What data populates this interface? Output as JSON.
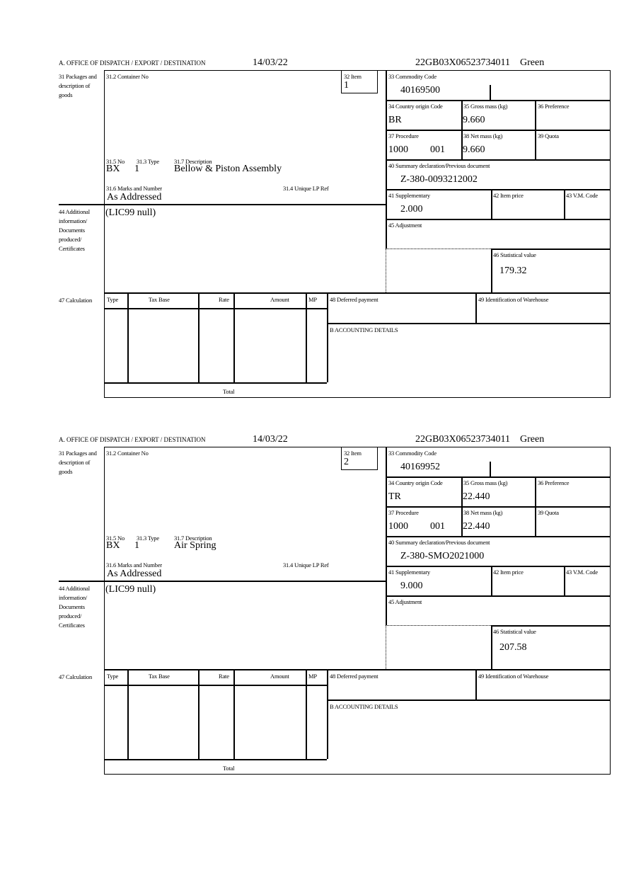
{
  "labels": {
    "header_office": "A.  OFFICE OF DISPATCH / EXPORT / DESTINATION",
    "box31": "31 Packages and description of goods",
    "container_no": "31.2 Container No",
    "item": "32 Item",
    "no": "31.5 No",
    "type": "31.3 Type",
    "description": "31.7 Description",
    "marks": "31.6 Marks and Number",
    "unique_lp": "31.4 Unique LP Ref",
    "commodity": "33 Commodity Code",
    "country_origin": "34 Country origin Code",
    "gross_mass": "35 Gross mass (kg)",
    "preference": "36 Preference",
    "procedure": "37 Procedure",
    "net_mass": "38 Net mass (kg)",
    "quota": "39 Quota",
    "summary_decl": "40 Summary declaration/Previous document",
    "supplementary": "41 Supplementary",
    "item_price": "42 Item price",
    "vm_code": "43 V.M. Code",
    "box44": "44 Additional information/ Documents produced/ Certificates",
    "adjustment": "45 Adjustment",
    "statistical": "46 Statistical value",
    "box47": "47 Calculation",
    "calc_type": "Type",
    "calc_tax_base": "Tax Base",
    "calc_rate": "Rate",
    "calc_amount": "Amount",
    "calc_mp": "MP",
    "deferred": "48 Deferred payment",
    "warehouse": "49 Identification of Warehouse",
    "accounting": "B ACCOUNTING DETAILS",
    "total": "Total"
  },
  "forms": [
    {
      "date": "14/03/22",
      "reference": "22GB03X06523734011",
      "route": "Green",
      "item": "1",
      "package_kind": "BX",
      "package_count": "1",
      "description": "Bellow & Piston Assembly",
      "marks": "As Addressed",
      "commodity_code": "40169500",
      "country_origin": "BR",
      "gross_mass": "9.660",
      "procedure": "1000",
      "procedure_additional": "001",
      "net_mass": "9.660",
      "previous_document": "Z-380-0093212002",
      "supplementary": "2.000",
      "additional_info": "(LIC99 null)",
      "statistical_value": "179.32"
    },
    {
      "date": "14/03/22",
      "reference": "22GB03X06523734011",
      "route": "Green",
      "item": "2",
      "package_kind": "BX",
      "package_count": "1",
      "description": "Air Spring",
      "marks": "As Addressed",
      "commodity_code": "40169952",
      "country_origin": "TR",
      "gross_mass": "22.440",
      "procedure": "1000",
      "procedure_additional": "001",
      "net_mass": "22.440",
      "previous_document": "Z-380-SMO2021000",
      "supplementary": "9.000",
      "additional_info": "(LIC99 null)",
      "statistical_value": "207.58"
    }
  ]
}
